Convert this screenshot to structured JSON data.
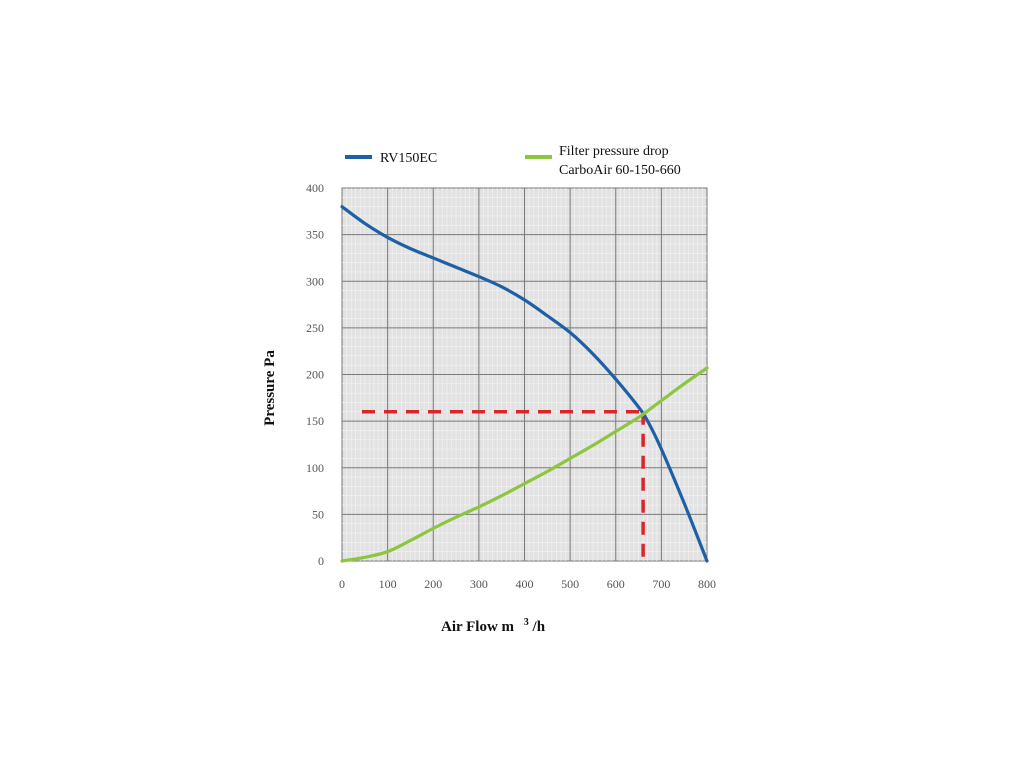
{
  "chart_data": {
    "type": "line",
    "title": "",
    "xlabel": "Air Flow m",
    "xlabel_sup": "3",
    "xlabel_suffix": "/h",
    "ylabel": "Pressure Pa",
    "xlim": [
      0,
      800
    ],
    "ylim": [
      0,
      400
    ],
    "x_ticks": [
      0,
      100,
      200,
      300,
      400,
      500,
      600,
      700,
      800
    ],
    "y_ticks": [
      0,
      50,
      100,
      150,
      200,
      250,
      300,
      350,
      400
    ],
    "grid": true,
    "legend_position": "top",
    "series": [
      {
        "name": "RV150EC",
        "color": "#1f5fa6",
        "points": [
          [
            0,
            380
          ],
          [
            50,
            362
          ],
          [
            100,
            347
          ],
          [
            150,
            335
          ],
          [
            200,
            325
          ],
          [
            250,
            315
          ],
          [
            300,
            305
          ],
          [
            350,
            294
          ],
          [
            400,
            280
          ],
          [
            450,
            263
          ],
          [
            500,
            245
          ],
          [
            550,
            222
          ],
          [
            600,
            195
          ],
          [
            650,
            165
          ],
          [
            670,
            150
          ],
          [
            700,
            120
          ],
          [
            750,
            62
          ],
          [
            800,
            0
          ]
        ]
      },
      {
        "name": "Filter pressure drop",
        "name_line2": "CarboAir 60-150-660",
        "color": "#8cc63f",
        "points": [
          [
            0,
            0
          ],
          [
            50,
            4
          ],
          [
            100,
            10
          ],
          [
            150,
            22
          ],
          [
            200,
            35
          ],
          [
            250,
            47
          ],
          [
            300,
            58
          ],
          [
            350,
            70
          ],
          [
            400,
            83
          ],
          [
            450,
            96
          ],
          [
            500,
            110
          ],
          [
            550,
            124
          ],
          [
            600,
            139
          ],
          [
            650,
            154
          ],
          [
            700,
            172
          ],
          [
            750,
            190
          ],
          [
            800,
            207
          ]
        ]
      }
    ],
    "reference_lines": {
      "color": "#d9262b",
      "operating_point": [
        660,
        160
      ]
    }
  }
}
